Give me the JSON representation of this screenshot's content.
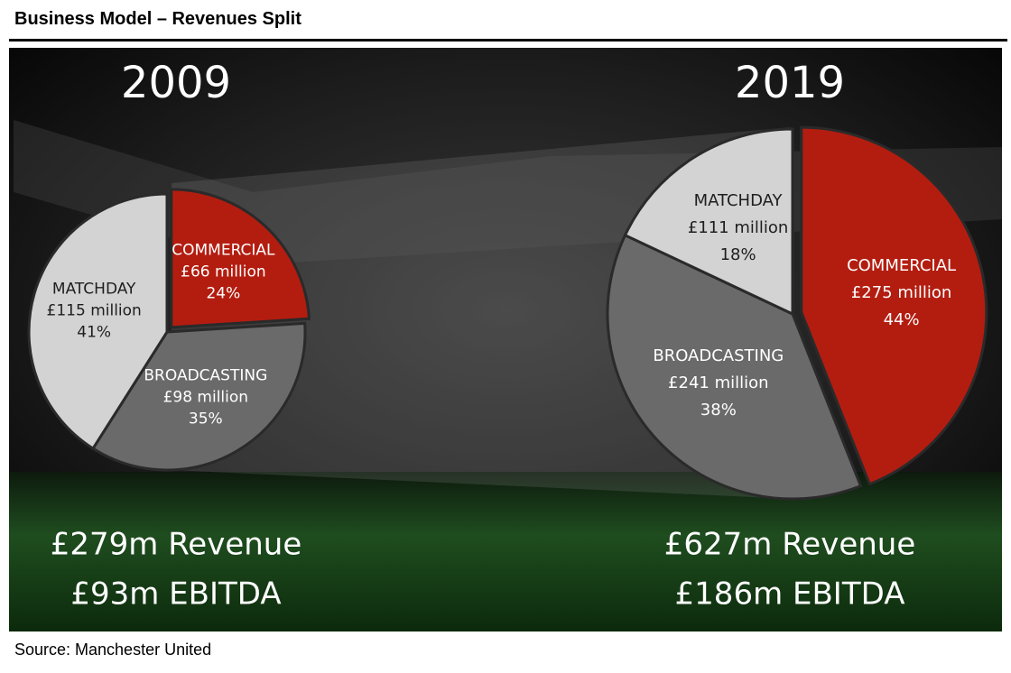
{
  "title": "Business Model – Revenues Split",
  "source": "Source: Manchester United",
  "chart_data": [
    {
      "type": "pie",
      "title": "2009",
      "categories": [
        "COMMERCIAL",
        "BROADCASTING",
        "MATCHDAY"
      ],
      "values": [
        24,
        35,
        41
      ],
      "value_labels": [
        "24%",
        "35%",
        "41%"
      ],
      "amounts": [
        66,
        98,
        115
      ],
      "amount_labels": [
        "£66 million",
        "£98 million",
        "£115 million"
      ],
      "colors": [
        "#b31d10",
        "#6a6a6a",
        "#d3d3d3"
      ],
      "annotations": [
        "£279m Revenue",
        "£93m EBITDA"
      ]
    },
    {
      "type": "pie",
      "title": "2019",
      "categories": [
        "COMMERCIAL",
        "BROADCASTING",
        "MATCHDAY"
      ],
      "values": [
        44,
        38,
        18
      ],
      "value_labels": [
        "44%",
        "38%",
        "18%"
      ],
      "amounts": [
        275,
        241,
        111
      ],
      "amount_labels": [
        "£275 million",
        "£241 million",
        "£111 million"
      ],
      "colors": [
        "#b31d10",
        "#6a6a6a",
        "#d3d3d3"
      ],
      "annotations": [
        "£627m Revenue",
        "£186m EBITDA"
      ]
    }
  ]
}
